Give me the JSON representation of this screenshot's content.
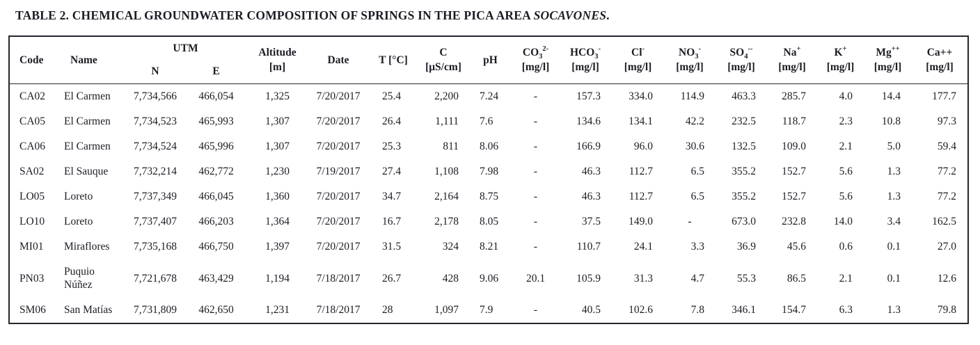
{
  "title": {
    "prefix": "TABLE 2. CHEMICAL GROUNDWATER COMPOSITION OF SPRINGS IN THE PICA AREA ",
    "italic": "SOCAVONES",
    "suffix": "."
  },
  "table": {
    "header": {
      "code": "Code",
      "name": "Name",
      "utm_group": "UTM",
      "utm_n": "N",
      "utm_e": "E",
      "altitude": "Altitude",
      "altitude_unit": "[m]",
      "date": "Date",
      "temperature": "T [°C]",
      "conductivity": "C",
      "conductivity_unit": "[μS/cm]",
      "ph": "pH",
      "ions": [
        {
          "base": "CO",
          "sub": "3",
          "sup": "2-",
          "unit": "[mg/l]"
        },
        {
          "base": "HCO",
          "sub": "3",
          "sup": "-",
          "unit": "[mg/l]"
        },
        {
          "base": "Cl",
          "sub": "",
          "sup": "-",
          "unit": "[mg/l]"
        },
        {
          "base": "NO",
          "sub": "3",
          "sup": "-",
          "unit": "[mg/l]"
        },
        {
          "base": "SO",
          "sub": "4",
          "sup": "--",
          "unit": "[mg/l]"
        },
        {
          "base": "Na",
          "sub": "",
          "sup": "+",
          "unit": "[mg/l]"
        },
        {
          "base": "K",
          "sub": "",
          "sup": "+",
          "unit": "[mg/l]"
        },
        {
          "base": "Mg",
          "sub": "",
          "sup": "++",
          "unit": "[mg/l]"
        },
        {
          "base": "Ca++",
          "sub": "",
          "sup": "",
          "unit": "[mg/l]"
        }
      ]
    },
    "column_order": [
      "code",
      "name",
      "utm_n",
      "utm_e",
      "altitude",
      "date",
      "temperature",
      "conductivity",
      "ph",
      "co3",
      "hco3",
      "cl",
      "no3",
      "so4",
      "na",
      "k",
      "mg",
      "ca"
    ],
    "rows": [
      [
        "CA02",
        "El Carmen",
        "7,734,566",
        "466,054",
        "1,325",
        "7/20/2017",
        "25.4",
        "2,200",
        "7.24",
        "-",
        "157.3",
        "334.0",
        "114.9",
        "463.3",
        "285.7",
        "4.0",
        "14.4",
        "177.7"
      ],
      [
        "CA05",
        "El Carmen",
        "7,734,523",
        "465,993",
        "1,307",
        "7/20/2017",
        "26.4",
        "1,111",
        "7.6",
        "-",
        "134.6",
        "134.1",
        "42.2",
        "232.5",
        "118.7",
        "2.3",
        "10.8",
        "97.3"
      ],
      [
        "CA06",
        "El Carmen",
        "7,734,524",
        "465,996",
        "1,307",
        "7/20/2017",
        "25.3",
        "811",
        "8.06",
        "-",
        "166.9",
        "96.0",
        "30.6",
        "132.5",
        "109.0",
        "2.1",
        "5.0",
        "59.4"
      ],
      [
        "SA02",
        "El Sauque",
        "7,732,214",
        "462,772",
        "1,230",
        "7/19/2017",
        "27.4",
        "1,108",
        "7.98",
        "-",
        "46.3",
        "112.7",
        "6.5",
        "355.2",
        "152.7",
        "5.6",
        "1.3",
        "77.2"
      ],
      [
        "LO05",
        "Loreto",
        "7,737,349",
        "466,045",
        "1,360",
        "7/20/2017",
        "34.7",
        "2,164",
        "8.75",
        "-",
        "46.3",
        "112.7",
        "6.5",
        "355.2",
        "152.7",
        "5.6",
        "1.3",
        "77.2"
      ],
      [
        "LO10",
        "Loreto",
        "7,737,407",
        "466,203",
        "1,364",
        "7/20/2017",
        "16.7",
        "2,178",
        "8.05",
        "-",
        "37.5",
        "149.0",
        "-",
        "673.0",
        "232.8",
        "14.0",
        "3.4",
        "162.5"
      ],
      [
        "MI01",
        "Miraflores",
        "7,735,168",
        "466,750",
        "1,397",
        "7/20/2017",
        "31.5",
        "324",
        "8.21",
        "-",
        "110.7",
        "24.1",
        "3.3",
        "36.9",
        "45.6",
        "0.6",
        "0.1",
        "27.0"
      ],
      [
        "PN03",
        "Puquio\nNúñez",
        "7,721,678",
        "463,429",
        "1,194",
        "7/18/2017",
        "26.7",
        "428",
        "9.06",
        "20.1",
        "105.9",
        "31.3",
        "4.7",
        "55.3",
        "86.5",
        "2.1",
        "0.1",
        "12.6"
      ],
      [
        "SM06",
        "San Matías",
        "7,731,809",
        "462,650",
        "1,231",
        "7/18/2017",
        "28",
        "1,097",
        "7.9",
        "-",
        "40.5",
        "102.6",
        "7.8",
        "346.1",
        "154.7",
        "6.3",
        "1.3",
        "79.8"
      ]
    ]
  },
  "colors": {
    "text": "#1c1c24",
    "border": "#26262e",
    "background": "#ffffff"
  }
}
